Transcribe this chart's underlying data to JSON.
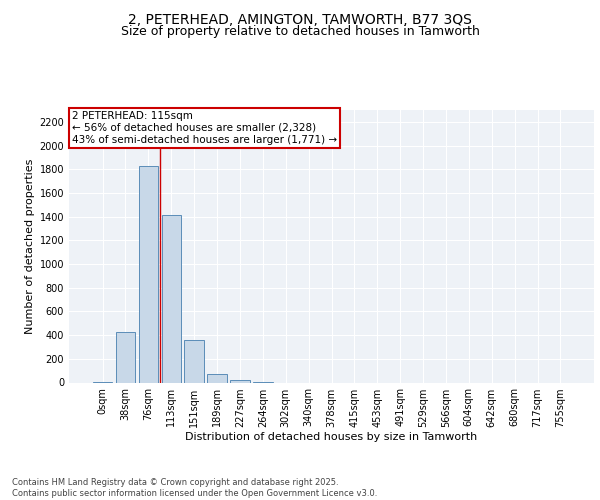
{
  "title": "2, PETERHEAD, AMINGTON, TAMWORTH, B77 3QS",
  "subtitle": "Size of property relative to detached houses in Tamworth",
  "xlabel": "Distribution of detached houses by size in Tamworth",
  "ylabel": "Number of detached properties",
  "bar_color": "#c8d8e8",
  "bar_edge_color": "#5b8db8",
  "background_color": "#eef2f7",
  "grid_color": "#ffffff",
  "annotation_box_color": "#cc0000",
  "vline_color": "#cc0000",
  "annotation_text": "2 PETERHEAD: 115sqm\n← 56% of detached houses are smaller (2,328)\n43% of semi-detached houses are larger (1,771) →",
  "categories": [
    "0sqm",
    "38sqm",
    "76sqm",
    "113sqm",
    "151sqm",
    "189sqm",
    "227sqm",
    "264sqm",
    "302sqm",
    "340sqm",
    "378sqm",
    "415sqm",
    "453sqm",
    "491sqm",
    "529sqm",
    "566sqm",
    "604sqm",
    "642sqm",
    "680sqm",
    "717sqm",
    "755sqm"
  ],
  "values": [
    5,
    430,
    1830,
    1415,
    355,
    75,
    22,
    3,
    0,
    0,
    0,
    0,
    0,
    0,
    0,
    0,
    0,
    0,
    0,
    0,
    0
  ],
  "ylim": [
    0,
    2300
  ],
  "yticks": [
    0,
    200,
    400,
    600,
    800,
    1000,
    1200,
    1400,
    1600,
    1800,
    2000,
    2200
  ],
  "footnote": "Contains HM Land Registry data © Crown copyright and database right 2025.\nContains public sector information licensed under the Open Government Licence v3.0.",
  "title_fontsize": 10,
  "subtitle_fontsize": 9,
  "axis_label_fontsize": 8,
  "tick_fontsize": 7,
  "annotation_fontsize": 7.5,
  "footnote_fontsize": 6
}
